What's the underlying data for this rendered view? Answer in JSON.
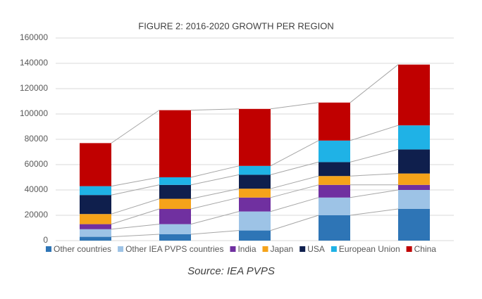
{
  "chart_data": {
    "type": "stacked-bar",
    "title": "FIGURE 2: 2016-2020 GROWTH PER REGION",
    "source": "Source: IEA PVPS",
    "categories": [
      null,
      null,
      null,
      null,
      null
    ],
    "series": [
      {
        "name": "Other countries",
        "color": "#2e75b6",
        "values": [
          3000,
          5000,
          8000,
          20000,
          25000
        ]
      },
      {
        "name": "Other IEA PVPS countries",
        "color": "#9dc3e6",
        "values": [
          6000,
          8000,
          15000,
          14000,
          15000
        ]
      },
      {
        "name": "India",
        "color": "#7030a0",
        "values": [
          4000,
          12000,
          11000,
          10000,
          4000
        ]
      },
      {
        "name": "Japan",
        "color": "#f5a31a",
        "values": [
          8000,
          8000,
          7000,
          7000,
          9000
        ]
      },
      {
        "name": "USA",
        "color": "#0f1f4d",
        "values": [
          15000,
          11000,
          11000,
          11000,
          19000
        ]
      },
      {
        "name": "European Union",
        "color": "#1fb2e6",
        "values": [
          7000,
          6000,
          7000,
          17000,
          19000
        ]
      },
      {
        "name": "China",
        "color": "#c00000",
        "values": [
          34000,
          53000,
          45000,
          30000,
          48000
        ]
      }
    ],
    "ylim": [
      0,
      160000
    ],
    "yticks": [
      0,
      20000,
      40000,
      60000,
      80000,
      100000,
      120000,
      140000,
      160000
    ],
    "grid": true,
    "legend": "bottom"
  }
}
